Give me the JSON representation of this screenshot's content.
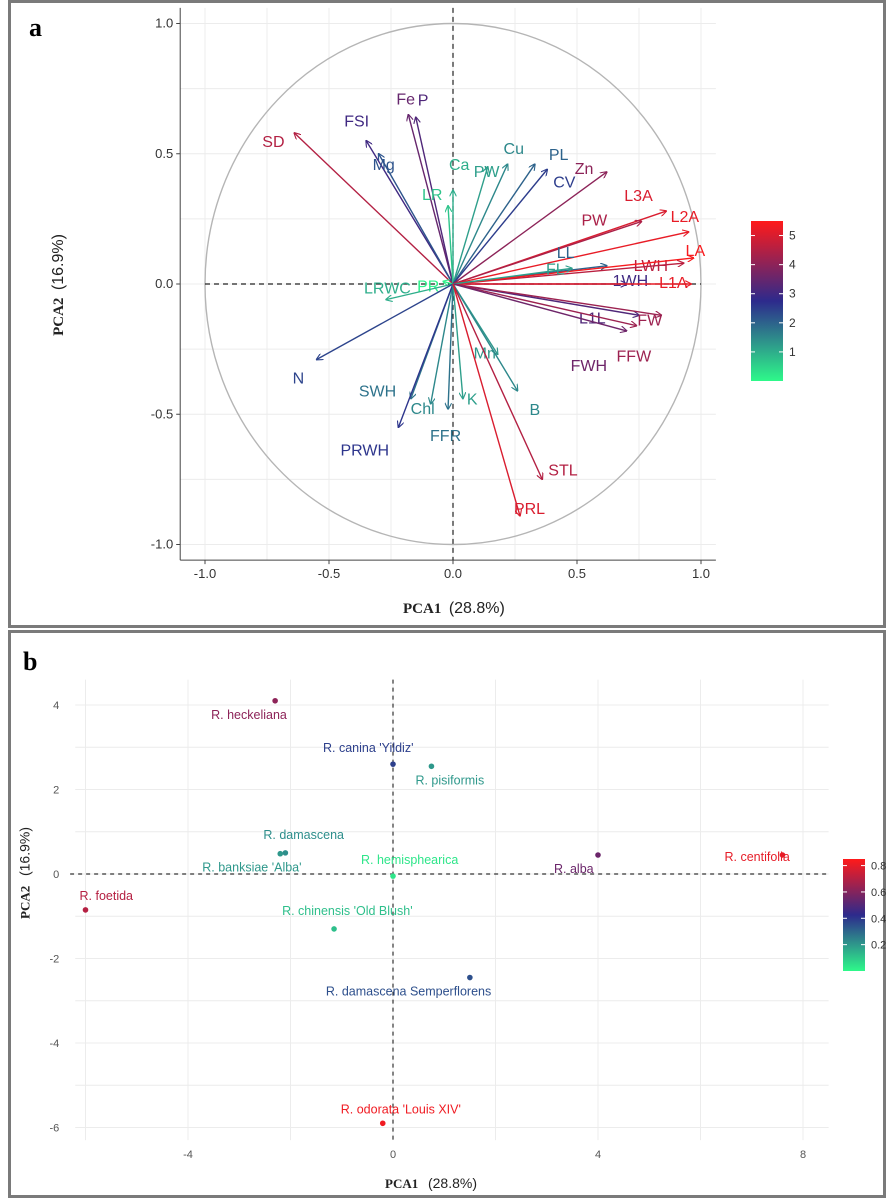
{
  "chart_data": [
    {
      "panel": "a",
      "type": "scatter",
      "plot_kind": "pca-variable-correlation-circle",
      "xlabel": "PCA1",
      "xlabel_pct": "(28.8%)",
      "ylabel": "PCA2",
      "ylabel_pct": "(16.9%)",
      "xlim": [
        -1.0,
        1.0
      ],
      "ylim": [
        -1.0,
        1.0
      ],
      "x_ticks": [
        "-1.0",
        "-0.5",
        "0.0",
        "0.5",
        "1.0"
      ],
      "y_ticks": [
        "1.0",
        "0.5",
        "0.0",
        "-0.5",
        "-1.0"
      ],
      "grid": true,
      "legend_placement": "right",
      "colorbar": {
        "ticks": [
          "5",
          "4",
          "3",
          "2",
          "1"
        ],
        "low_color": "#2ef98a",
        "mid_color": "#2d2a8c",
        "high_color": "#ff1a1a",
        "range": [
          0,
          5.5
        ]
      },
      "vectors": [
        {
          "label": "Fe",
          "x": -0.18,
          "y": 0.65,
          "c": 3.5
        },
        {
          "label": "P",
          "x": -0.15,
          "y": 0.64,
          "c": 3.2
        },
        {
          "label": "FSI",
          "x": -0.35,
          "y": 0.55,
          "c": 3.0
        },
        {
          "label": "Mg",
          "x": -0.3,
          "y": 0.5,
          "c": 2.2
        },
        {
          "label": "SD",
          "x": -0.64,
          "y": 0.58,
          "c": 4.5
        },
        {
          "label": "Ca",
          "x": 0.0,
          "y": 0.36,
          "c": 1.0
        },
        {
          "label": "LR",
          "x": -0.02,
          "y": 0.3,
          "c": 0.7
        },
        {
          "label": "PW",
          "x": 0.14,
          "y": 0.45,
          "c": 1.2
        },
        {
          "label": "Cu",
          "x": 0.22,
          "y": 0.46,
          "c": 1.5
        },
        {
          "label": "PL",
          "x": 0.33,
          "y": 0.46,
          "c": 2.0
        },
        {
          "label": "CV",
          "x": 0.38,
          "y": 0.44,
          "c": 2.5
        },
        {
          "label": "Zn",
          "x": 0.62,
          "y": 0.43,
          "c": 4.0
        },
        {
          "label": "L3A",
          "x": 0.86,
          "y": 0.28,
          "c": 5.0
        },
        {
          "label": "PW",
          "x": 0.76,
          "y": 0.24,
          "c": 4.4
        },
        {
          "label": "L2A",
          "x": 0.95,
          "y": 0.2,
          "c": 5.2
        },
        {
          "label": "LL",
          "x": 0.62,
          "y": 0.07,
          "c": 2.0
        },
        {
          "label": "LWH",
          "x": 0.93,
          "y": 0.08,
          "c": 4.6
        },
        {
          "label": "LA",
          "x": 0.97,
          "y": 0.1,
          "c": 5.4
        },
        {
          "label": "1WH",
          "x": 0.7,
          "y": 0.0,
          "c": 3.0
        },
        {
          "label": "L1A",
          "x": 0.96,
          "y": 0.0,
          "c": 5.2
        },
        {
          "label": "FL",
          "x": 0.48,
          "y": 0.06,
          "c": 1.2
        },
        {
          "label": "L1L",
          "x": 0.75,
          "y": -0.12,
          "c": 3.2
        },
        {
          "label": "FW",
          "x": 0.84,
          "y": -0.12,
          "c": 4.2
        },
        {
          "label": "FFW",
          "x": 0.74,
          "y": -0.16,
          "c": 4.2
        },
        {
          "label": "FWH",
          "x": 0.7,
          "y": -0.18,
          "c": 3.6
        },
        {
          "label": "PR",
          "x": -0.04,
          "y": 0.01,
          "c": 0.1
        },
        {
          "label": "LRWC",
          "x": -0.27,
          "y": -0.06,
          "c": 1.0
        },
        {
          "label": "N",
          "x": -0.55,
          "y": -0.29,
          "c": 2.4
        },
        {
          "label": "SWH",
          "x": -0.17,
          "y": -0.44,
          "c": 1.8
        },
        {
          "label": "Chl",
          "x": -0.09,
          "y": -0.46,
          "c": 1.5
        },
        {
          "label": "PRWH",
          "x": -0.22,
          "y": -0.55,
          "c": 2.6
        },
        {
          "label": "FFR",
          "x": -0.02,
          "y": -0.48,
          "c": 1.8
        },
        {
          "label": "K",
          "x": 0.04,
          "y": -0.44,
          "c": 1.2
        },
        {
          "label": "Mn",
          "x": 0.18,
          "y": -0.27,
          "c": 1.3
        },
        {
          "label": "B",
          "x": 0.26,
          "y": -0.41,
          "c": 1.5
        },
        {
          "label": "STL",
          "x": 0.36,
          "y": -0.75,
          "c": 4.5
        },
        {
          "label": "PRL",
          "x": 0.27,
          "y": -0.89,
          "c": 5.0
        }
      ]
    },
    {
      "panel": "b",
      "type": "scatter",
      "plot_kind": "pca-individuals",
      "xlabel": "PCA1",
      "xlabel_pct": "(28.8%)",
      "ylabel": "PCA2",
      "ylabel_pct": "(16.9%)",
      "xlim": [
        -6.2,
        8.5
      ],
      "ylim": [
        -6.3,
        4.6
      ],
      "x_ticks": [
        -4,
        0,
        4,
        8
      ],
      "y_ticks": [
        4,
        2,
        0,
        -2,
        -4,
        -6
      ],
      "grid": true,
      "legend_placement": "right",
      "colorbar": {
        "ticks": [
          "0.8",
          "0.6",
          "0.4",
          "0.2"
        ],
        "low_color": "#2ef98a",
        "mid_color": "#2d2a8c",
        "high_color": "#ff1a1a",
        "range": [
          0,
          0.85
        ]
      },
      "points": [
        {
          "label": "R. heckeliana",
          "x": -2.3,
          "y": 4.1,
          "c": 0.62
        },
        {
          "label": "R. canina 'Yildiz'",
          "x": 0.0,
          "y": 2.6,
          "c": 0.38
        },
        {
          "label": "R. pisiformis",
          "x": 0.75,
          "y": 2.55,
          "c": 0.2
        },
        {
          "label": "R. damascena",
          "x": -2.1,
          "y": 0.5,
          "c": 0.22
        },
        {
          "label": "R. banksiae 'Alba'",
          "x": -2.2,
          "y": 0.48,
          "c": 0.2
        },
        {
          "label": "R. alba",
          "x": 4.0,
          "y": 0.45,
          "c": 0.55
        },
        {
          "label": "R. centifolia",
          "x": 7.6,
          "y": 0.45,
          "c": 0.8
        },
        {
          "label": "R. hemisphearica",
          "x": 0.0,
          "y": -0.05,
          "c": 0.04
        },
        {
          "label": "R. chinensis 'Old Blush'",
          "x": -1.15,
          "y": -1.3,
          "c": 0.12
        },
        {
          "label": "R. foetida",
          "x": -6.0,
          "y": -0.85,
          "c": 0.7
        },
        {
          "label": "R. damascena Semperflorens",
          "x": 1.5,
          "y": -2.45,
          "c": 0.35
        },
        {
          "label": "R. odorata 'Louis XIV'",
          "x": -0.2,
          "y": -5.9,
          "c": 0.82
        }
      ]
    }
  ]
}
